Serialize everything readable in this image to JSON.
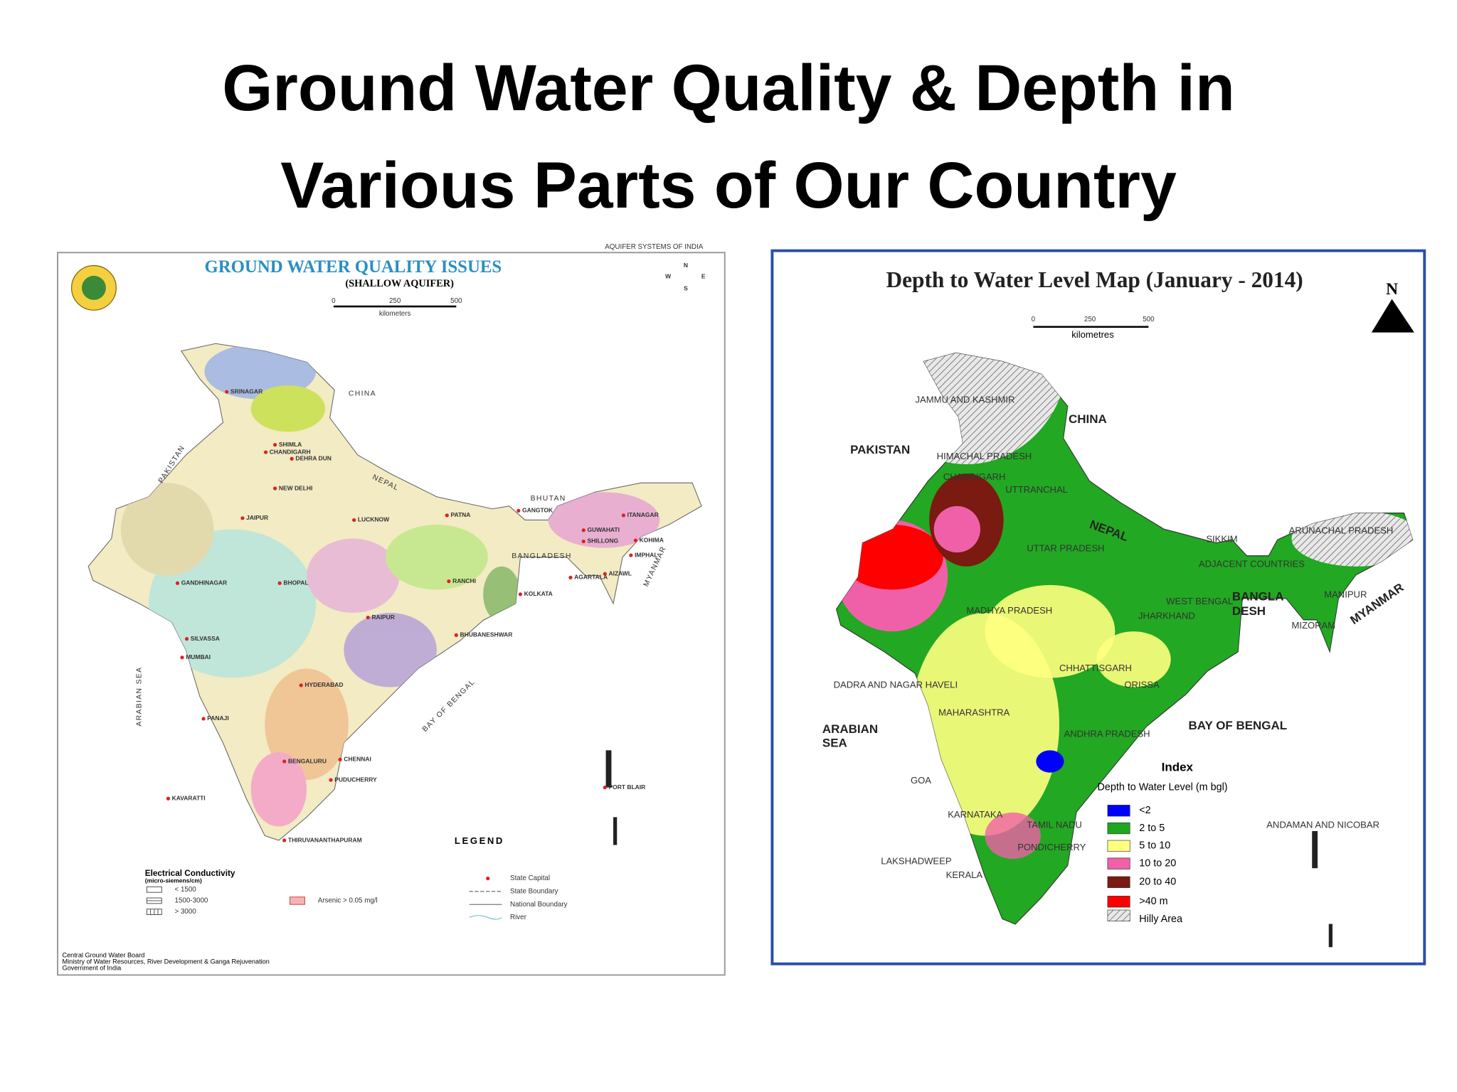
{
  "title": [
    "Ground Water Quality & Depth in",
    "Various Parts of Our Country"
  ],
  "left_map": {
    "header": "AQUIFER SYSTEMS OF INDIA",
    "title": "GROUND WATER QUALITY ISSUES",
    "subtitle": "(SHALLOW AQUIFER)",
    "scale": [
      "0",
      "250",
      "500"
    ],
    "scale_unit": "kilometers",
    "compass": [
      "N",
      "E",
      "S",
      "W"
    ],
    "countries": [
      "CHINA",
      "PAKISTAN",
      "NEPAL",
      "BHUTAN",
      "BANGLADESH",
      "MYANMAR",
      "ARABIAN SEA",
      "BAY OF BENGAL"
    ],
    "cities": [
      "SRINAGAR",
      "SHIMLA",
      "CHANDIGARH",
      "DEHRA DUN",
      "NEW DELHI",
      "JAIPUR",
      "LUCKNOW",
      "PATNA",
      "GANGTOK",
      "ITANAGAR",
      "GUWAHATI",
      "SHILLONG",
      "KOHIMA",
      "IMPHAL",
      "AGARTALA",
      "AIZAWL",
      "GANDHINAGAR",
      "BHOPAL",
      "RANCHI",
      "KOLKATA",
      "RAIPUR",
      "SILVASSA",
      "MUMBAI",
      "BHUBANESHWAR",
      "HYDERABAD",
      "PANAJI",
      "BENGALURU",
      "CHENNAI",
      "PUDUCHERRY",
      "KAVARATTI",
      "PORT BLAIR",
      "THIRUVANANTHAPURAM"
    ],
    "legend_title": "LEGEND",
    "ec_title": "Electrical Conductivity",
    "ec_unit": "(micro-siemens/cm)",
    "ec_items": [
      "< 1500",
      "1500-3000",
      "> 3000"
    ],
    "arsenic": "Arsenic > 0.05 mg/l",
    "symbols": [
      "State Capital",
      "State Boundary",
      "National Boundary",
      "River"
    ],
    "footer": [
      "Central Ground Water Board",
      "Ministry of Water Resources, River Development & Ganga Rejuvenation",
      "Government of India"
    ]
  },
  "right_map": {
    "title": "Depth to Water Level Map (January - 2014)",
    "north": "N",
    "scale": [
      "0",
      "250",
      "500"
    ],
    "scale_unit": "kilometres",
    "countries": [
      "CHINA",
      "PAKISTAN",
      "NEPAL",
      "BANGLA",
      "DESH",
      "MYANMAR",
      "ARABIAN",
      "SEA",
      "BAY OF BENGAL"
    ],
    "states": [
      "JAMMU AND KASHMIR",
      "HIMACHAL PRADESH",
      "CHANDIGARH",
      "UTTRANCHAL",
      "UTTAR PRADESH",
      "SIKKIM",
      "ARUNACHAL PRADESH",
      "ADJACENT COUNTRIES",
      "MANIPUR",
      "MIZORAM",
      "MADHYA PRADESH",
      "WEST BENGAL",
      "JHARKHAND",
      "CHHATTISGARH",
      "ORISSA",
      "DADRA AND NAGAR HAVELI",
      "MAHARASHTRA",
      "ANDHRA PRADESH",
      "GOA",
      "KARNATAKA",
      "TAMIL NADU",
      "PONDICHERRY",
      "LAKSHADWEEP",
      "KERALA",
      "ANDAMAN AND NICOBAR"
    ],
    "index_title": "Index",
    "index_subtitle": "Depth to Water Level (m bgl)",
    "index_items": [
      {
        "label": "<2",
        "color": "#0000ff"
      },
      {
        "label": "2 to 5",
        "color": "#1fa61f"
      },
      {
        "label": "5 to 10",
        "color": "#ffff80"
      },
      {
        "label": "10 to 20",
        "color": "#f060a8"
      },
      {
        "label": "20 to 40",
        "color": "#7a1a10"
      },
      {
        "label": ">40 m",
        "color": "#ff0000"
      },
      {
        "label": "Hilly Area"
      }
    ]
  }
}
